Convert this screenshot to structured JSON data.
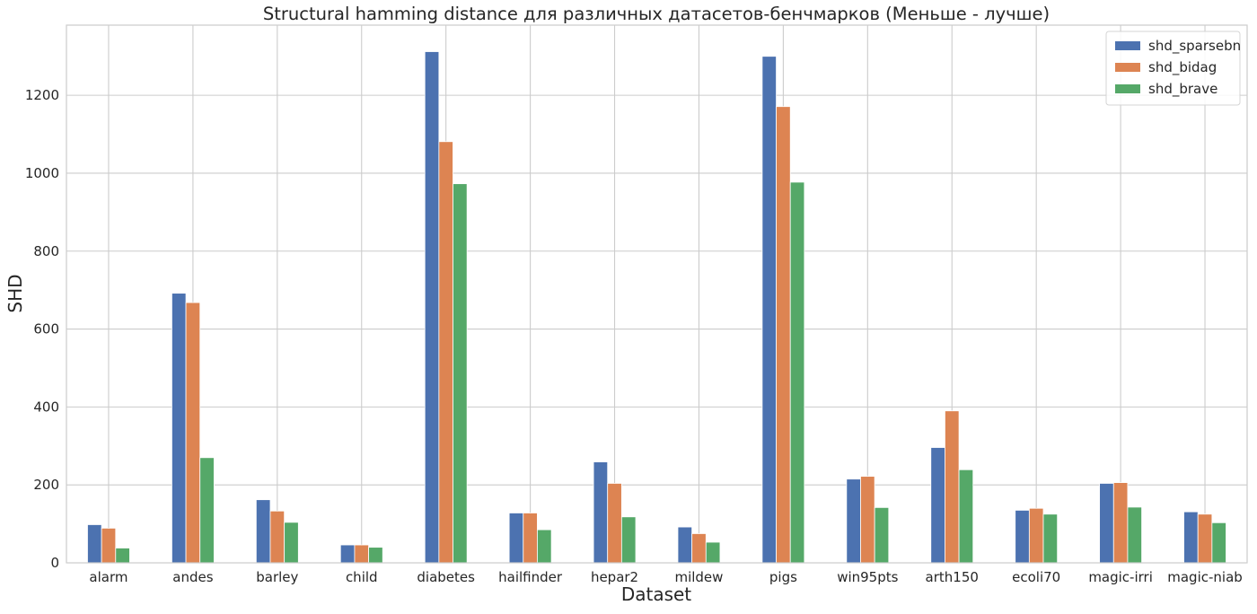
{
  "chart_data": {
    "type": "bar",
    "title": "Structural hamming distance для различных датасетов-бенчмарков (Меньше - лучше)",
    "xlabel": "Dataset",
    "ylabel": "SHD",
    "categories": [
      "alarm",
      "andes",
      "barley",
      "child",
      "diabetes",
      "hailfinder",
      "hepar2",
      "mildew",
      "pigs",
      "win95pts",
      "arth150",
      "ecoli70",
      "magic-irri",
      "magic-niab"
    ],
    "series": [
      {
        "name": "shd_sparsebn",
        "color": "#4c72b0",
        "values": [
          98,
          692,
          162,
          46,
          1312,
          128,
          259,
          92,
          1300,
          215,
          296,
          135,
          204,
          131
        ]
      },
      {
        "name": "shd_bidag",
        "color": "#dd8452",
        "values": [
          89,
          668,
          133,
          46,
          1081,
          128,
          204,
          75,
          1171,
          222,
          390,
          140,
          206,
          125
        ]
      },
      {
        "name": "shd_brave",
        "color": "#55a868",
        "values": [
          38,
          270,
          104,
          40,
          973,
          85,
          118,
          53,
          977,
          142,
          239,
          125,
          143,
          103
        ]
      }
    ],
    "ylim": [
      0,
      1380
    ],
    "yticks": [
      0,
      200,
      400,
      600,
      800,
      1000,
      1200
    ],
    "grid": true,
    "legend_position": "top-right"
  }
}
